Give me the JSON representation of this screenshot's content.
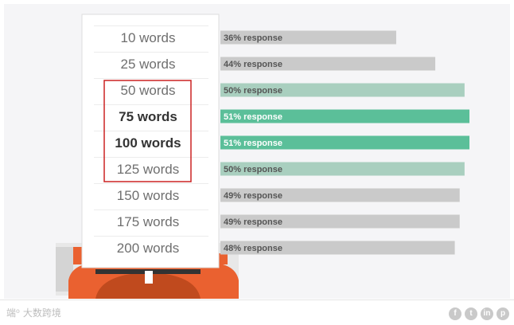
{
  "chart_data": {
    "type": "bar",
    "orientation": "horizontal",
    "categories": [
      "10 words",
      "25 words",
      "50 words",
      "75 words",
      "100 words",
      "125 words",
      "150 words",
      "175 words",
      "200 words"
    ],
    "values": [
      36,
      44,
      50,
      51,
      51,
      50,
      49,
      49,
      48
    ],
    "bar_labels": [
      "36% response",
      "44% response",
      "50% response",
      "51% response",
      "51% response",
      "50% response",
      "49% response",
      "49% response",
      "48% response"
    ],
    "highlighted_range": [
      "50 words",
      "125 words"
    ],
    "bold_categories": [
      "75 words",
      "100 words"
    ],
    "xlim": [
      0,
      51
    ],
    "grid": false,
    "colors": {
      "bar_default": "#cacaca",
      "bar_light_green": "#a9cfbf",
      "bar_green": "#5bbf99",
      "label_dark": "#555555",
      "label_on_green": "#ffffff",
      "highlight_box": "#cc2222",
      "typewriter_orange": "#ea6130"
    }
  },
  "footer": {
    "logo_mark": "端⁰",
    "logo_text": "大数跨境",
    "social_icons": [
      "facebook-icon",
      "twitter-icon",
      "linkedin-icon",
      "pinterest-icon"
    ]
  }
}
